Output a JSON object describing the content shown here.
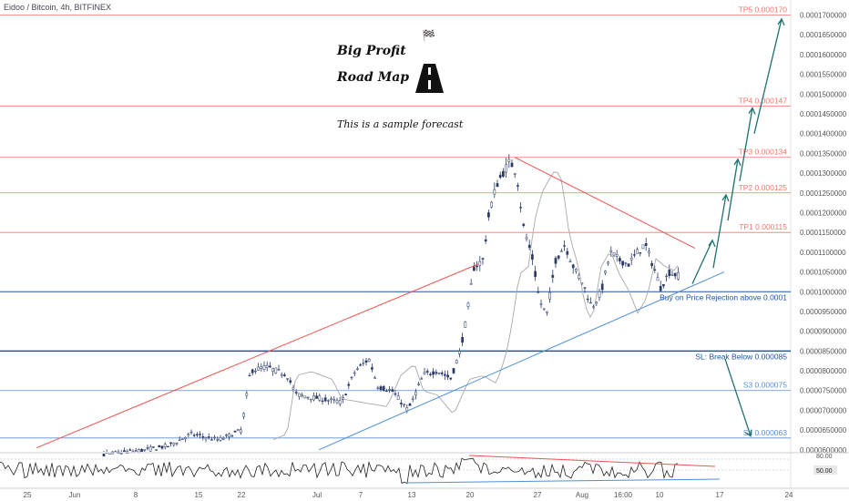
{
  "chart_data": {
    "type": "candlestick",
    "title": "Eidoo / Bitcoin, 4h, BITFINEX",
    "ylim": [
      5.95e-05,
      0.0001715
    ],
    "x_ticks": [
      "25",
      "Jun",
      "8",
      "15",
      "22",
      "Jul",
      "7",
      "13",
      "20",
      "27",
      "Aug",
      "16:00",
      "10",
      "17",
      "24"
    ],
    "y_ticks": [
      "0.0001700000",
      "0.0001650000",
      "0.0001600000",
      "0.0001550000",
      "0.0001500000",
      "0.0001450000",
      "0.0001400000",
      "0.0001350000",
      "0.0001300000",
      "0.0001250000",
      "0.0001200000",
      "0.0001150000",
      "0.0001100000",
      "0.0001050000",
      "0.0001000000",
      "0.0000950000",
      "0.0000900000",
      "0.0000850000",
      "0.0000800000",
      "0.0000750000",
      "0.0000700000",
      "0.0000650000",
      "0.0000600000"
    ],
    "levels": [
      {
        "label": "TP5 0.000170",
        "value": 0.00017,
        "color": "#f2766b"
      },
      {
        "label": "TP4 0.000147",
        "value": 0.000147,
        "color": "#f2766b"
      },
      {
        "label": "TP3 0.000134",
        "value": 0.000134,
        "color": "#f2766b"
      },
      {
        "label": "TP2 0.000125",
        "value": 0.000125,
        "color": "#f2766b"
      },
      {
        "label": "TP1 0.000115",
        "value": 0.000115,
        "color": "#f2766b"
      },
      {
        "label": "Buy on Price Rejection above 0.0001",
        "value": 0.0001,
        "color": "#1e56a6"
      },
      {
        "label": "SL: Break Below 0.000085",
        "value": 8.5e-05,
        "color": "#1e56a6"
      },
      {
        "label": "S3 0.000075",
        "value": 7.5e-05,
        "color": "#5b8fd4"
      },
      {
        "label": "S4 0.000063",
        "value": 6.3e-05,
        "color": "#5b8fd4"
      }
    ],
    "notes": {
      "big_profit": "Big Profit",
      "road_map": "Road Map",
      "forecast": "This is a sample forecast"
    },
    "rsi": {
      "top_label": "80.00",
      "mid_label": "50.00"
    },
    "colors": {
      "up": "#26a69a",
      "down": "#ef5350",
      "candle": "#2b3a67",
      "trend_red": "#ef5350",
      "trend_blue": "#4f8fd9",
      "arrow": "#1f6f6f",
      "ma": "#a8a8a8"
    }
  }
}
